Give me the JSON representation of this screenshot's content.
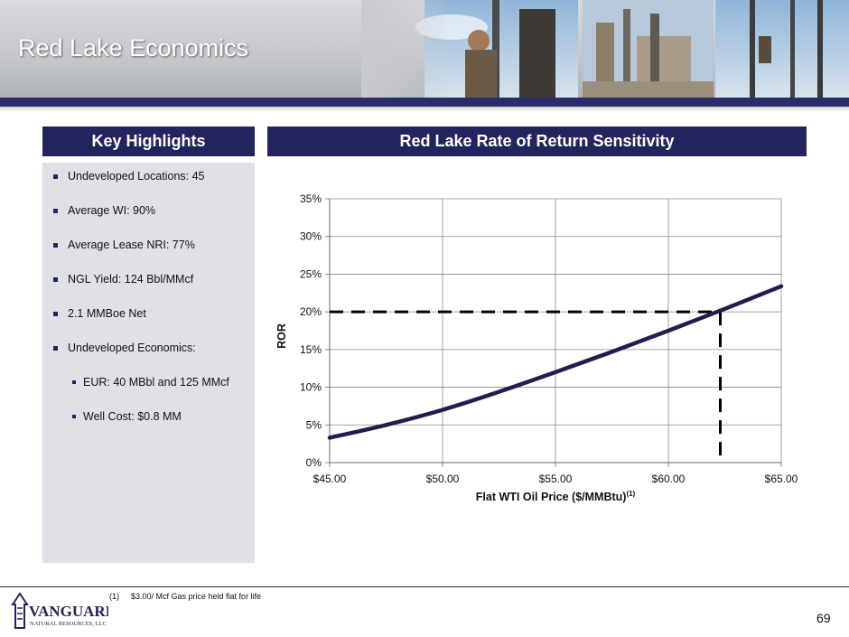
{
  "header": {
    "title": "Red Lake Economics"
  },
  "key_highlights": {
    "heading": "Key Highlights",
    "items": [
      "Undeveloped Locations: 45",
      "Average WI: 90%",
      "Average Lease NRI: 77%",
      "NGL Yield: 124 Bbl/MMcf",
      "2.1 MMBoe Net",
      "Undeveloped Economics:"
    ],
    "sub_items": [
      "EUR: 40 MBbl and 125 MMcf",
      "Well Cost: $0.8 MM"
    ]
  },
  "chart_section": {
    "heading": "Red Lake Rate of Return Sensitivity"
  },
  "chart_data": {
    "type": "line",
    "title": "Red Lake Rate of Return Sensitivity",
    "xlabel": "Flat WTI Oil Price ($/MMBtu)",
    "xlabel_superscript": "(1)",
    "ylabel": "ROR",
    "xlim": [
      45,
      65
    ],
    "ylim": [
      0,
      35
    ],
    "x_ticks": [
      45,
      50,
      55,
      60,
      65
    ],
    "x_tick_labels": [
      "$45.00",
      "$50.00",
      "$55.00",
      "$60.00",
      "$65.00"
    ],
    "y_ticks": [
      0,
      5,
      10,
      15,
      20,
      25,
      30,
      35
    ],
    "y_tick_labels": [
      "0%",
      "5%",
      "10%",
      "15%",
      "20%",
      "25%",
      "30%",
      "35%"
    ],
    "grid": true,
    "series": [
      {
        "name": "ROR",
        "color": "#1f1f4f",
        "x": [
          45,
          47.5,
          50,
          52.5,
          55,
          57.5,
          60,
          62.5,
          65
        ],
        "y": [
          3.3,
          5.0,
          7.0,
          9.4,
          12.0,
          14.7,
          17.5,
          20.4,
          23.4
        ]
      }
    ],
    "breakeven_reference": {
      "x": 62.3,
      "y": 20
    }
  },
  "footer": {
    "footnote_marker": "(1)",
    "footnote_text": "$3.00/ Mcf Gas price held flat for life",
    "page_number": "69",
    "logo_text": "VANGUARD",
    "logo_subtext": "NATURAL RESOURCES, LLC"
  },
  "colors": {
    "navy": "#23245e",
    "panel_bg": "#dfe1e6",
    "curve": "#1f1f4f"
  }
}
